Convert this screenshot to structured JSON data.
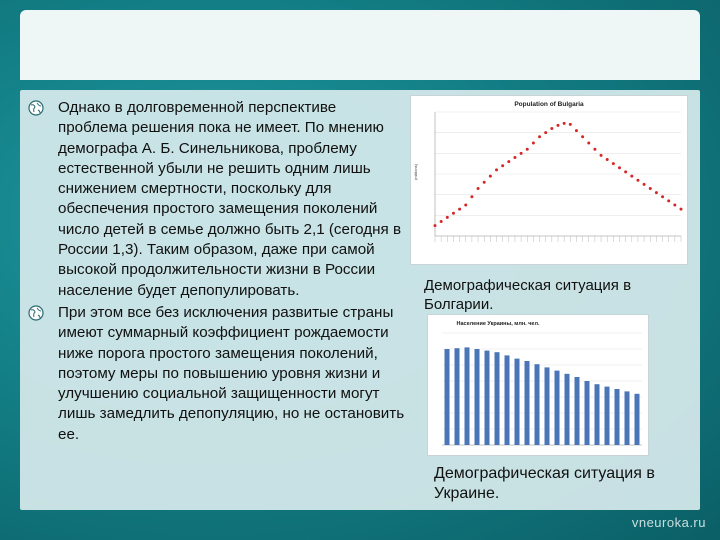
{
  "bullets": [
    "Однако в долговременной перспективе проблема решения пока не имеет. По мнению демографа А. Б. Синельникова, проблему естественной убыли не решить одним лишь снижением смертности, поскольку для обеспечения простого замещения поколений число детей в семье должно быть 2,1 (сегодня в России 1,3). Таким образом, даже при самой высокой продолжительности жизни в России население будет депопулировать.",
    "При этом все без исключения развитые страны имеют суммарный коэффициент рождаемости ниже порога простого замещения поколений, поэтому меры по повышению уровня жизни и улучшению социальной защищенности могут лишь замедлить депопуляцию, но не остановить ее."
  ],
  "captions": {
    "bulgaria": "Демографическая ситуация в Болгарии.",
    "ukraine": "Демографическая ситуация в Украине."
  },
  "watermark": "vneuroka.ru",
  "chart_data": [
    {
      "type": "scatter",
      "title": "Population of Bulgaria",
      "ylabel": "(millions)",
      "x": [
        1900,
        1904,
        1908,
        1912,
        1916,
        1920,
        1924,
        1928,
        1932,
        1936,
        1940,
        1944,
        1948,
        1952,
        1956,
        1960,
        1964,
        1968,
        1972,
        1976,
        1980,
        1984,
        1988,
        1992,
        1996,
        2000,
        2004,
        2008,
        2012,
        2016,
        2020,
        2024,
        2028,
        2032,
        2036,
        2040,
        2044,
        2048,
        2052,
        2056,
        2060
      ],
      "y": [
        4.0,
        4.2,
        4.4,
        4.6,
        4.8,
        5.0,
        5.4,
        5.8,
        6.1,
        6.4,
        6.7,
        6.9,
        7.1,
        7.3,
        7.5,
        7.7,
        8.0,
        8.3,
        8.5,
        8.7,
        8.85,
        8.95,
        8.9,
        8.6,
        8.3,
        8.0,
        7.7,
        7.4,
        7.2,
        7.0,
        6.8,
        6.6,
        6.4,
        6.2,
        6.0,
        5.8,
        5.6,
        5.4,
        5.2,
        5.0,
        4.8
      ],
      "ylim": [
        3.5,
        9.5
      ],
      "color": "#d62728"
    },
    {
      "type": "bar",
      "title": "Население Украины, млн. чел.",
      "categories": [
        "1",
        "2",
        "3",
        "4",
        "5",
        "6",
        "7",
        "8",
        "9",
        "10",
        "11",
        "12",
        "13",
        "14",
        "15",
        "16",
        "17",
        "18",
        "19",
        "20"
      ],
      "values": [
        52.0,
        52.1,
        52.2,
        52.0,
        51.8,
        51.6,
        51.2,
        50.8,
        50.5,
        50.1,
        49.7,
        49.3,
        48.9,
        48.5,
        48.0,
        47.6,
        47.3,
        47.0,
        46.7,
        46.4
      ],
      "ylim": [
        40,
        54
      ],
      "color": "#4a76b8"
    }
  ]
}
